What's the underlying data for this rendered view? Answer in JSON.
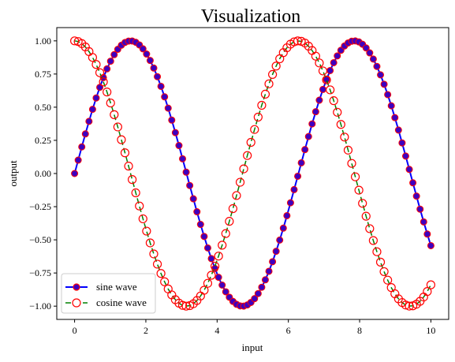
{
  "chart_data": {
    "type": "line",
    "title": "Visualization",
    "xlabel": "input",
    "ylabel": "output",
    "xlim": [
      -0.5,
      10.5
    ],
    "ylim": [
      -1.1,
      1.1
    ],
    "xticks": [
      0,
      2,
      4,
      6,
      8,
      10
    ],
    "xtick_labels": [
      "0",
      "2",
      "4",
      "6",
      "8",
      "10"
    ],
    "yticks": [
      1.0,
      0.75,
      0.5,
      0.25,
      0.0,
      -0.25,
      -0.5,
      -0.75,
      -1.0
    ],
    "ytick_labels": [
      "1.00",
      "0.75",
      "0.50",
      "0.25",
      "0.00",
      "−0.25",
      "−0.50",
      "−0.75",
      "−1.00"
    ],
    "grid": false,
    "legend_position": "lower-left",
    "x": {
      "start": 0,
      "stop": 10,
      "count": 100
    },
    "series": [
      {
        "name": "sine wave",
        "function": "sin",
        "line_color": "#0000ff",
        "line_style": "solid",
        "marker": "filled-circle",
        "marker_face": "#3f00bf",
        "marker_edge": "#ff0000"
      },
      {
        "name": "cosine wave",
        "function": "cos",
        "line_color": "#008000",
        "line_style": "dashed",
        "marker": "hollow-circle",
        "marker_face": "none",
        "marker_edge": "#ff0000"
      }
    ]
  }
}
